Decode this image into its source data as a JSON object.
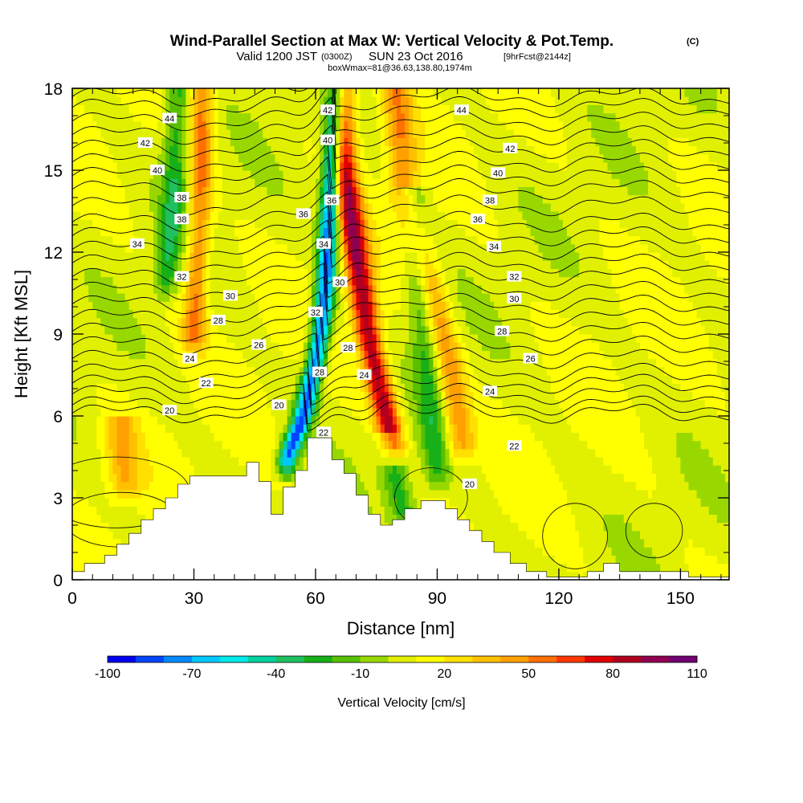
{
  "titles": {
    "main": "Wind-Parallel Section at Max W: Vertical Velocity & Pot.Temp.",
    "main_unit": "(C)",
    "valid_prefix": "Valid 1200 JST",
    "valid_zulu": "(0300Z)",
    "valid_date": "SUN 23 Oct 2016",
    "forecast": "[9hrFcst@2144z]",
    "boxmax": "boxWmax=81@36.63,138.80,1974m"
  },
  "chart_data": {
    "type": "heatmap",
    "xlabel": "Distance [nm]",
    "ylabel": "Height [Kft MSL]",
    "xlim": [
      0,
      162
    ],
    "ylim": [
      0,
      18
    ],
    "x_ticks": [
      0,
      30,
      60,
      90,
      120,
      150
    ],
    "y_ticks": [
      0,
      3,
      6,
      9,
      12,
      15,
      18
    ],
    "grid": false,
    "colorbar": {
      "label": "Vertical Velocity [cm/s]",
      "placement": "bottom",
      "min": -100,
      "max": 110,
      "tick_labels": [
        -100,
        -70,
        -40,
        -10,
        20,
        50,
        80,
        110
      ],
      "colors": [
        "#0000ee",
        "#0044ff",
        "#0088ff",
        "#00c8ff",
        "#00e8e8",
        "#00d0a0",
        "#20c060",
        "#18b018",
        "#58c000",
        "#98d800",
        "#e0f000",
        "#ffff00",
        "#ffe000",
        "#ffc000",
        "#ffa000",
        "#ff7000",
        "#ff3800",
        "#e00000",
        "#b00020",
        "#900050",
        "#700070"
      ]
    },
    "terrain": [
      [
        0,
        0.3
      ],
      [
        3,
        0.3
      ],
      [
        3,
        0.6
      ],
      [
        8,
        0.6
      ],
      [
        8,
        0.9
      ],
      [
        11,
        0.9
      ],
      [
        11,
        1.3
      ],
      [
        14,
        1.3
      ],
      [
        14,
        1.7
      ],
      [
        17,
        1.7
      ],
      [
        17,
        2.2
      ],
      [
        20,
        2.2
      ],
      [
        20,
        2.6
      ],
      [
        23,
        2.6
      ],
      [
        23,
        3.0
      ],
      [
        26,
        3.0
      ],
      [
        26,
        3.5
      ],
      [
        29,
        3.5
      ],
      [
        29,
        3.8
      ],
      [
        43,
        3.8
      ],
      [
        43,
        4.3
      ],
      [
        46,
        4.3
      ],
      [
        46,
        3.6
      ],
      [
        49,
        3.6
      ],
      [
        49,
        2.4
      ],
      [
        52,
        2.4
      ],
      [
        52,
        3.4
      ],
      [
        55,
        3.4
      ],
      [
        55,
        4.0
      ],
      [
        58,
        4.0
      ],
      [
        58,
        5.2
      ],
      [
        64,
        5.2
      ],
      [
        64,
        4.4
      ],
      [
        67,
        4.4
      ],
      [
        67,
        3.9
      ],
      [
        70,
        3.9
      ],
      [
        70,
        3.1
      ],
      [
        73,
        3.1
      ],
      [
        73,
        2.4
      ],
      [
        76,
        2.4
      ],
      [
        76,
        2.0
      ],
      [
        79,
        2.0
      ],
      [
        79,
        2.2
      ],
      [
        82,
        2.2
      ],
      [
        82,
        2.6
      ],
      [
        86,
        2.6
      ],
      [
        86,
        2.9
      ],
      [
        92,
        2.9
      ],
      [
        92,
        2.6
      ],
      [
        95,
        2.6
      ],
      [
        95,
        2.2
      ],
      [
        98,
        2.2
      ],
      [
        98,
        1.8
      ],
      [
        101,
        1.8
      ],
      [
        101,
        1.4
      ],
      [
        104,
        1.4
      ],
      [
        104,
        1.0
      ],
      [
        108,
        1.0
      ],
      [
        108,
        0.6
      ],
      [
        112,
        0.6
      ],
      [
        112,
        0.3
      ],
      [
        117,
        0.3
      ],
      [
        117,
        0.1
      ],
      [
        127,
        0.1
      ],
      [
        127,
        0.3
      ],
      [
        131,
        0.3
      ],
      [
        131,
        0.6
      ],
      [
        135,
        0.6
      ],
      [
        135,
        0.3
      ],
      [
        140,
        0.3
      ],
      [
        140,
        0.3
      ],
      [
        152,
        0.3
      ],
      [
        152,
        0.1
      ],
      [
        162,
        0.1
      ]
    ],
    "updraft_bands": [
      {
        "name": "main",
        "points": [
          [
            66,
            17.9
          ],
          [
            67,
            15
          ],
          [
            70,
            12
          ],
          [
            73,
            9
          ],
          [
            76,
            7
          ],
          [
            79,
            5
          ]
        ],
        "peak": 81,
        "width": 3.2
      },
      {
        "name": "west",
        "points": [
          [
            32,
            17.9
          ],
          [
            32,
            15
          ],
          [
            31,
            12
          ],
          [
            30,
            9
          ]
        ],
        "peak": 45,
        "width": 2.8
      },
      {
        "name": "east",
        "points": [
          [
            80,
            17.9
          ],
          [
            82,
            14
          ],
          [
            88,
            11
          ],
          [
            93,
            8
          ],
          [
            96,
            5
          ]
        ],
        "peak": 38,
        "width": 3.5
      },
      {
        "name": "lee-southwest",
        "points": [
          [
            12,
            5.5
          ],
          [
            12,
            4.5
          ],
          [
            13,
            3.5
          ]
        ],
        "peak": 30,
        "width": 4
      }
    ],
    "downdraft_bands": [
      {
        "name": "main",
        "points": [
          [
            65,
            17.9
          ],
          [
            64,
            15
          ],
          [
            63,
            12
          ],
          [
            62,
            10
          ],
          [
            60,
            8
          ],
          [
            57,
            6
          ],
          [
            53,
            4.5
          ]
        ],
        "peak": -90,
        "width": 2.4
      },
      {
        "name": "west",
        "points": [
          [
            26,
            17.9
          ],
          [
            25,
            14
          ],
          [
            23,
            11
          ]
        ],
        "peak": -35,
        "width": 3
      },
      {
        "name": "east",
        "points": [
          [
            84,
            14
          ],
          [
            86,
            10
          ],
          [
            88,
            7
          ],
          [
            90,
            4
          ]
        ],
        "peak": -30,
        "width": 3.2
      },
      {
        "name": "lower-east",
        "points": [
          [
            78,
            5
          ],
          [
            80,
            3.5
          ],
          [
            82,
            2.5
          ]
        ],
        "peak": -35,
        "width": 3.5
      }
    ],
    "theta_contours": [
      {
        "level": 20,
        "y": 6.1
      },
      {
        "level": 21,
        "y": 6.4
      },
      {
        "level": 22,
        "y": 6.8
      },
      {
        "level": 23,
        "y": 7.2
      },
      {
        "level": 24,
        "y": 7.6
      },
      {
        "level": 25,
        "y": 8.1
      },
      {
        "level": 26,
        "y": 8.6
      },
      {
        "level": 27,
        "y": 9.1
      },
      {
        "level": 28,
        "y": 9.6
      },
      {
        "level": 29,
        "y": 10.1
      },
      {
        "level": 30,
        "y": 10.6
      },
      {
        "level": 31,
        "y": 11.1
      },
      {
        "level": 32,
        "y": 11.6
      },
      {
        "level": 33,
        "y": 12.1
      },
      {
        "level": 34,
        "y": 12.6
      },
      {
        "level": 35,
        "y": 13.1
      },
      {
        "level": 36,
        "y": 13.7
      },
      {
        "level": 37,
        "y": 14.3
      },
      {
        "level": 38,
        "y": 14.8
      },
      {
        "level": 39,
        "y": 15.3
      },
      {
        "level": 40,
        "y": 15.8
      },
      {
        "level": 41,
        "y": 16.3
      },
      {
        "level": 42,
        "y": 16.8
      },
      {
        "level": 43,
        "y": 17.3
      },
      {
        "level": 44,
        "y": 17.7
      }
    ],
    "contour_labels": [
      {
        "text": "44",
        "x": 24,
        "y": 16.9
      },
      {
        "text": "42",
        "x": 18,
        "y": 16.0
      },
      {
        "text": "40",
        "x": 21,
        "y": 15.0
      },
      {
        "text": "38",
        "x": 27,
        "y": 14.0
      },
      {
        "text": "38",
        "x": 27,
        "y": 13.2
      },
      {
        "text": "34",
        "x": 16,
        "y": 12.3
      },
      {
        "text": "32",
        "x": 27,
        "y": 11.1
      },
      {
        "text": "30",
        "x": 39,
        "y": 10.4
      },
      {
        "text": "28",
        "x": 36,
        "y": 9.5
      },
      {
        "text": "26",
        "x": 46,
        "y": 8.6
      },
      {
        "text": "24",
        "x": 29,
        "y": 8.1
      },
      {
        "text": "22",
        "x": 33,
        "y": 7.2
      },
      {
        "text": "20",
        "x": 24,
        "y": 6.2
      },
      {
        "text": "20",
        "x": 51,
        "y": 6.4
      },
      {
        "text": "42",
        "x": 63,
        "y": 17.2
      },
      {
        "text": "40",
        "x": 63,
        "y": 16.1
      },
      {
        "text": "36",
        "x": 64,
        "y": 13.9
      },
      {
        "text": "36",
        "x": 57,
        "y": 13.4
      },
      {
        "text": "34",
        "x": 62,
        "y": 12.3
      },
      {
        "text": "30",
        "x": 66,
        "y": 10.9
      },
      {
        "text": "32",
        "x": 60,
        "y": 9.8
      },
      {
        "text": "28",
        "x": 68,
        "y": 8.5
      },
      {
        "text": "28",
        "x": 61,
        "y": 7.6
      },
      {
        "text": "24",
        "x": 72,
        "y": 7.5
      },
      {
        "text": "22",
        "x": 62,
        "y": 5.4
      },
      {
        "text": "44",
        "x": 96,
        "y": 17.2
      },
      {
        "text": "42",
        "x": 108,
        "y": 15.8
      },
      {
        "text": "40",
        "x": 105,
        "y": 14.9
      },
      {
        "text": "38",
        "x": 103,
        "y": 13.9
      },
      {
        "text": "36",
        "x": 100,
        "y": 13.2
      },
      {
        "text": "34",
        "x": 104,
        "y": 12.2
      },
      {
        "text": "32",
        "x": 109,
        "y": 11.1
      },
      {
        "text": "30",
        "x": 109,
        "y": 10.3
      },
      {
        "text": "28",
        "x": 106,
        "y": 9.1
      },
      {
        "text": "26",
        "x": 113,
        "y": 8.1
      },
      {
        "text": "24",
        "x": 103,
        "y": 6.9
      },
      {
        "text": "22",
        "x": 109,
        "y": 4.9
      },
      {
        "text": "20",
        "x": 98,
        "y": 3.5
      }
    ]
  }
}
